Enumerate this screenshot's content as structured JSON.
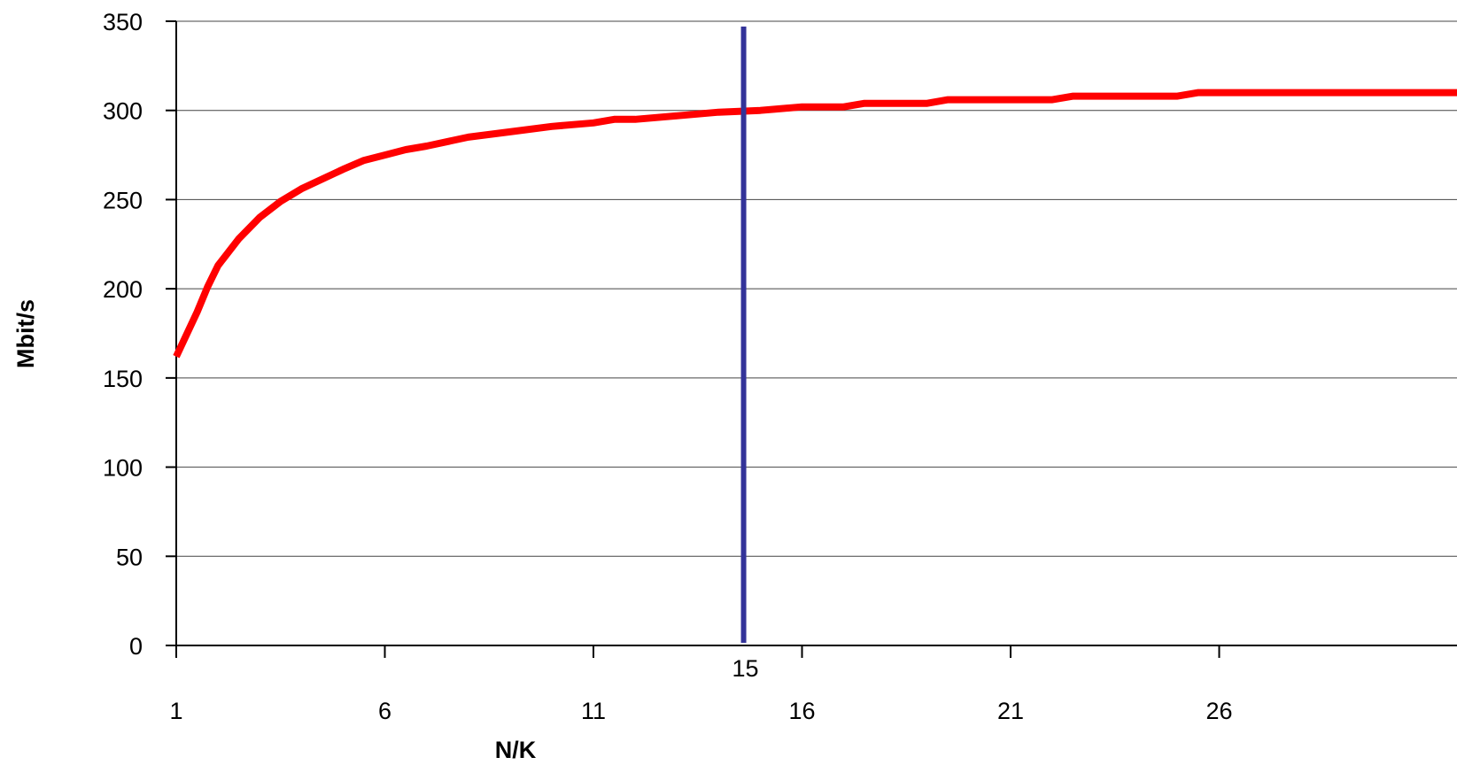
{
  "chart_data": {
    "type": "line",
    "title": "",
    "xlabel": "N/K",
    "ylabel": "Mbit/s",
    "xlim": [
      1,
      32
    ],
    "ylim": [
      0,
      350
    ],
    "y_ticks": [
      "0",
      "50",
      "100",
      "150",
      "200",
      "250",
      "300",
      "350"
    ],
    "x_ticks": [
      "1",
      "6",
      "11",
      "16",
      "21",
      "26"
    ],
    "grid": "horizontal",
    "legend": "none",
    "series": [
      {
        "color": "#ff0000",
        "x": [
          1,
          1.5,
          1.75,
          2,
          2.5,
          3,
          3.5,
          4,
          5,
          5.5,
          6,
          6.5,
          7,
          8,
          9,
          10,
          11,
          11.5,
          12,
          13,
          14,
          15,
          16,
          17,
          17.5,
          18,
          19,
          19.5,
          20,
          21,
          22,
          22.5,
          23,
          24,
          25,
          25.5,
          26,
          28,
          30,
          32
        ],
        "y": [
          162,
          187,
          201,
          213,
          228,
          240,
          249,
          256,
          267,
          272,
          275,
          278,
          280,
          285,
          288,
          291,
          293,
          295,
          295,
          297,
          299,
          300,
          302,
          302,
          304,
          304,
          304,
          306,
          306,
          306,
          306,
          308,
          308,
          308,
          308,
          310,
          310,
          310,
          310,
          310
        ]
      }
    ],
    "reference_line": {
      "x": 14.6,
      "label": "15",
      "color": "#333399"
    }
  }
}
